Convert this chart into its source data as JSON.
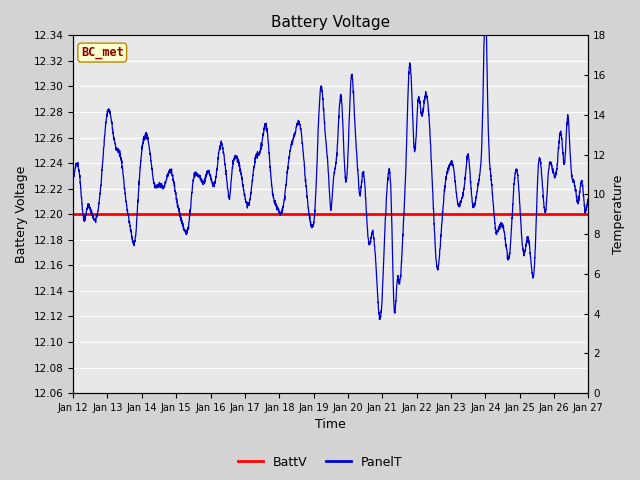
{
  "title": "Battery Voltage",
  "xlabel": "Time",
  "ylabel_left": "Battery Voltage",
  "ylabel_right": "Temperature",
  "annotation_text": "BC_met",
  "ylim_left": [
    12.06,
    12.34
  ],
  "ylim_right": [
    0,
    18
  ],
  "yticks_left": [
    12.06,
    12.08,
    12.1,
    12.12,
    12.14,
    12.16,
    12.18,
    12.2,
    12.22,
    12.24,
    12.26,
    12.28,
    12.3,
    12.32,
    12.34
  ],
  "yticks_right": [
    0,
    2,
    4,
    6,
    8,
    10,
    12,
    14,
    16,
    18
  ],
  "xtick_labels": [
    "Jan 12",
    "Jan 13",
    "Jan 14",
    "Jan 15",
    "Jan 16",
    "Jan 17",
    "Jan 18",
    "Jan 19",
    "Jan 20",
    "Jan 21",
    "Jan 22",
    "Jan 23",
    "Jan 24",
    "Jan 25",
    "Jan 26",
    "Jan 27"
  ],
  "battv_value": 12.2,
  "battv_color": "#ff0000",
  "panelt_color": "#0000cc",
  "bg_color": "#d3d3d3",
  "plot_bg_color": "#e8e8e8",
  "legend_items": [
    "BattV",
    "PanelT"
  ],
  "title_fontsize": 11,
  "axis_label_fontsize": 9,
  "tick_fontsize": 7.5
}
